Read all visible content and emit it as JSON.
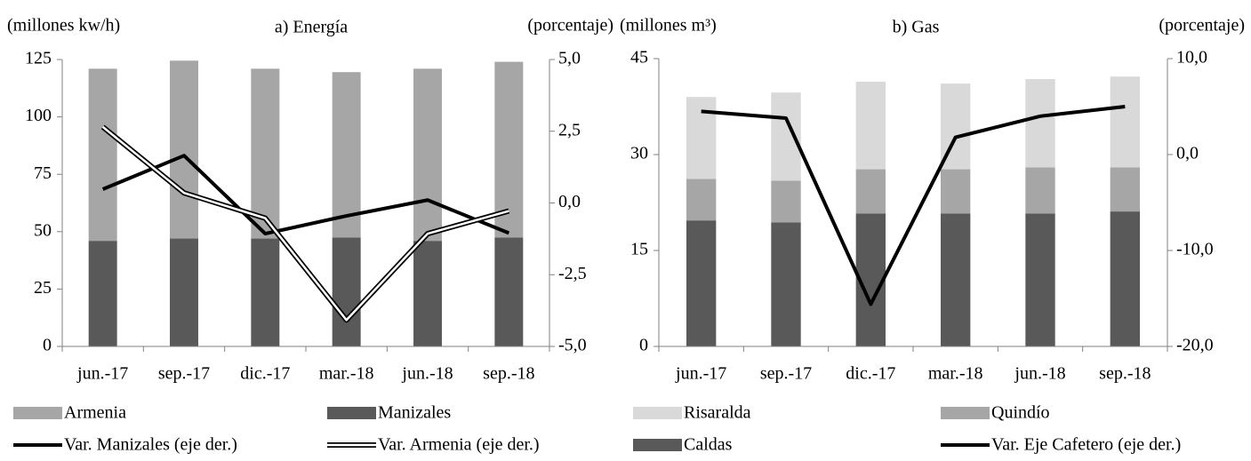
{
  "chart_data": [
    {
      "type": "bar",
      "title": "a) Energía",
      "ylabel": "(millones kw/h)",
      "y2label": "(porcentaje)",
      "categories": [
        "jun.-17",
        "sep.-17",
        "dic.-17",
        "mar.-18",
        "jun.-18",
        "sep.-18"
      ],
      "series": [
        {
          "name": "Armenia",
          "type": "bar",
          "color": "#a6a6a6",
          "values": [
            75,
            77.5,
            74,
            72,
            75,
            76.5
          ]
        },
        {
          "name": "Manizales",
          "type": "bar",
          "color": "#595959",
          "values": [
            46,
            47,
            47,
            47.5,
            46,
            47.5
          ]
        },
        {
          "name": "Var. Manizales (eje der.)",
          "type": "line",
          "axis": "y2",
          "color": "#000000",
          "line_style": "solid",
          "values": [
            0.48,
            1.65,
            -1.07,
            -0.45,
            0.1,
            -1.05
          ]
        },
        {
          "name": "Var. Armenia (eje der.)",
          "type": "line",
          "axis": "y2",
          "color": "#000000",
          "line_style": "double",
          "values": [
            2.65,
            0.35,
            -0.53,
            -4.08,
            -1.07,
            -0.28
          ]
        }
      ],
      "ylim": [
        0,
        125
      ],
      "yticks": [
        0,
        25,
        50,
        75,
        100,
        125
      ],
      "y2lim": [
        -5,
        5
      ],
      "y2ticks": [
        {
          "value": -5,
          "label": "-5,0"
        },
        {
          "value": -2.5,
          "label": "-2,5"
        },
        {
          "value": 0,
          "label": "0,0"
        },
        {
          "value": 2.5,
          "label": "2,5"
        },
        {
          "value": 5,
          "label": "5,0"
        }
      ],
      "grid": false
    },
    {
      "type": "bar",
      "title": "b) Gas",
      "ylabel": "(millones m³)",
      "y2label": "(porcentaje)",
      "categories": [
        "jun.-17",
        "sep.-17",
        "dic.-17",
        "mar.-18",
        "jun.-18",
        "sep.-18"
      ],
      "series": [
        {
          "name": "Risaralda",
          "type": "bar",
          "color": "#d9d9d9",
          "values": [
            12.8,
            13.8,
            13.7,
            13.4,
            13.8,
            14.2
          ]
        },
        {
          "name": "Quindío",
          "type": "bar",
          "color": "#a6a6a6",
          "values": [
            6.5,
            6.5,
            6.9,
            6.9,
            7.2,
            6.9
          ]
        },
        {
          "name": "Caldas",
          "type": "bar",
          "color": "#595959",
          "values": [
            19.7,
            19.4,
            20.8,
            20.8,
            20.8,
            21.1
          ]
        },
        {
          "name": "Var. Eje Cafetero (eje der.)",
          "type": "line",
          "axis": "y2",
          "color": "#000000",
          "line_style": "solid",
          "values": [
            4.5,
            3.8,
            -15.6,
            1.8,
            4.0,
            5.0
          ]
        }
      ],
      "ylim": [
        0,
        45
      ],
      "yticks": [
        0,
        15,
        30,
        45
      ],
      "y2lim": [
        -20,
        10
      ],
      "y2ticks": [
        {
          "value": -20,
          "label": "-20,0"
        },
        {
          "value": -10,
          "label": "-10,0"
        },
        {
          "value": 0,
          "label": "0,0"
        },
        {
          "value": 10,
          "label": "10,0"
        }
      ],
      "grid": false
    }
  ]
}
